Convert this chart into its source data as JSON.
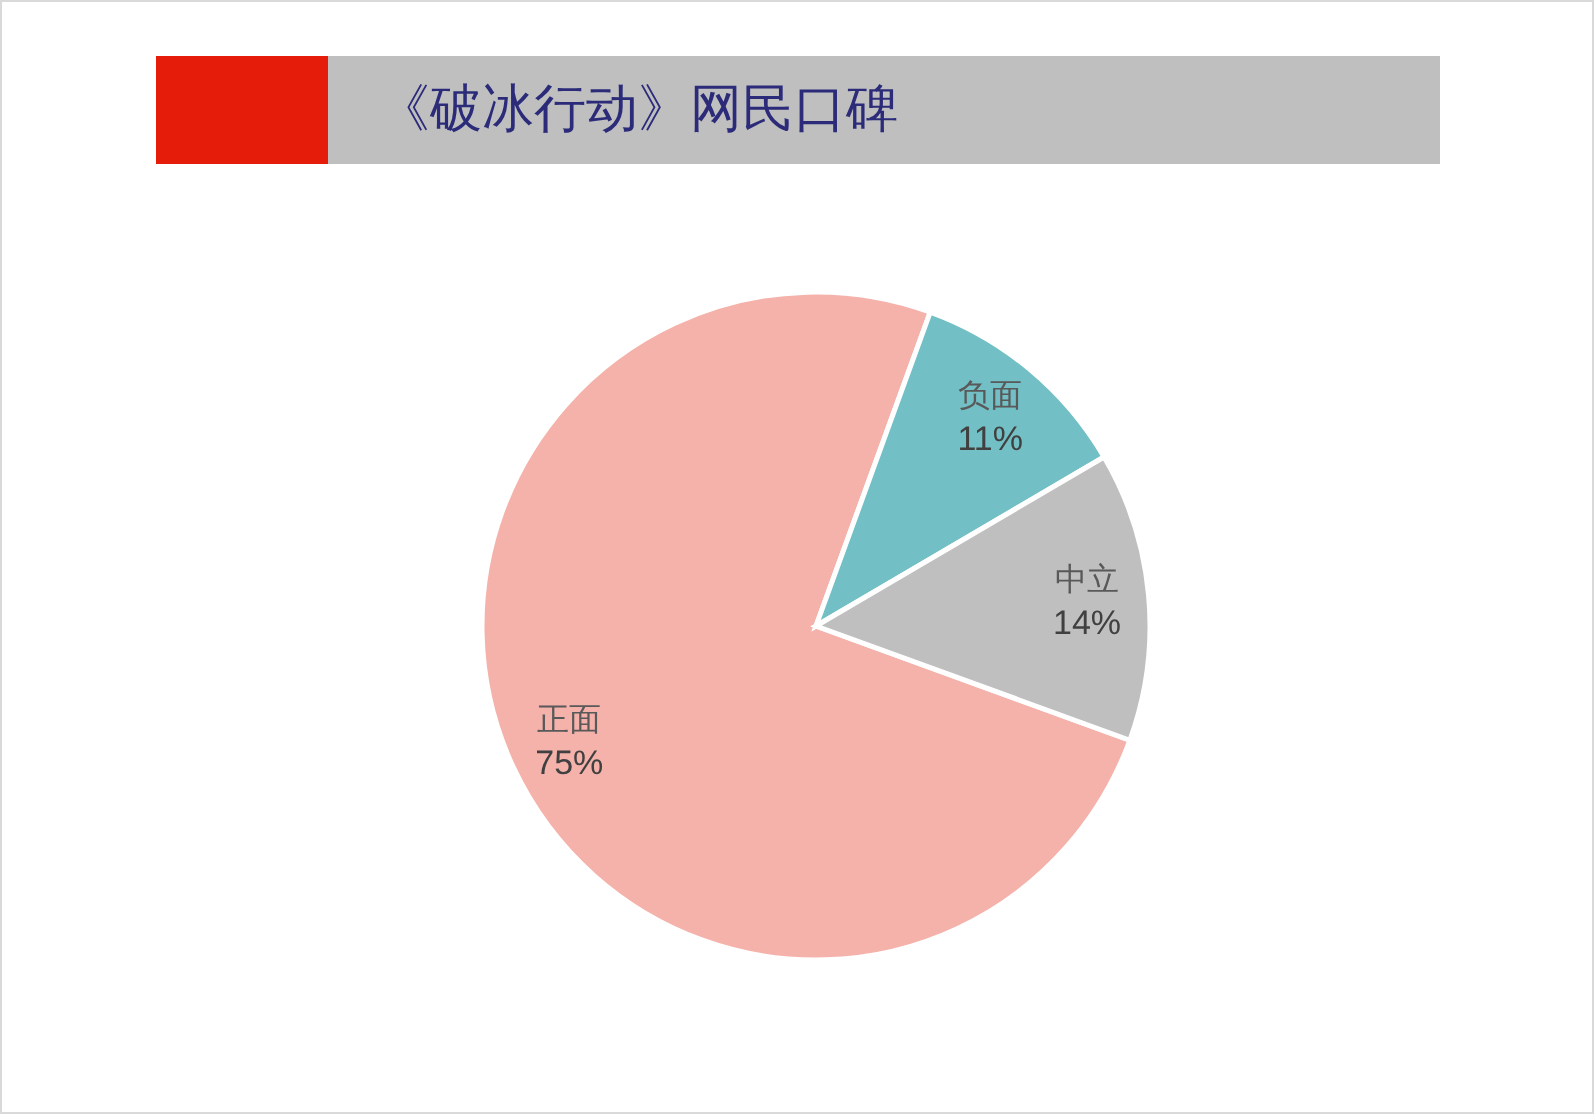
{
  "chart_data": {
    "type": "pie",
    "title": "《破冰行动》网民口碑",
    "categories": [
      "正面",
      "负面",
      "中立"
    ],
    "values": [
      75,
      11,
      14
    ],
    "colors": [
      "#f4b2aa",
      "#72bfc5",
      "#bfbfbf"
    ],
    "value_labels": [
      "75%",
      "11%",
      "14%"
    ]
  }
}
